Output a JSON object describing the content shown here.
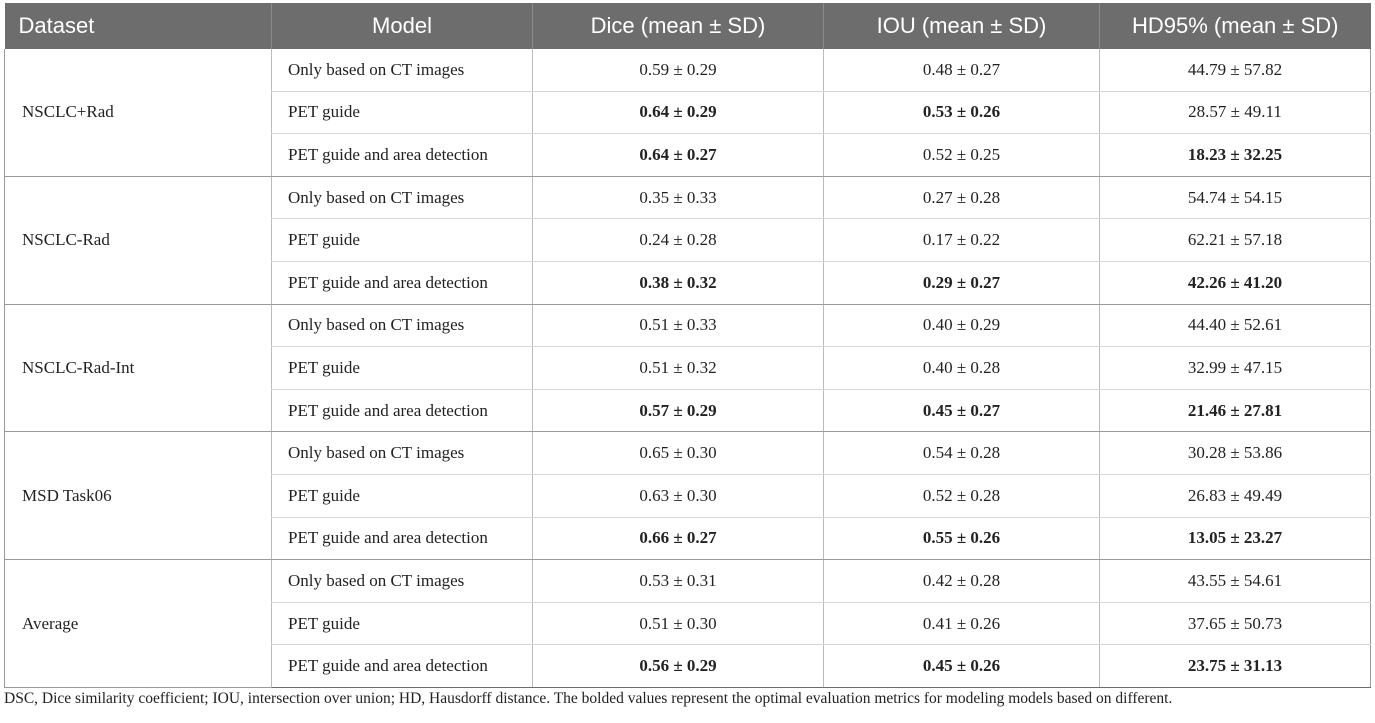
{
  "table": {
    "headers": [
      "Dataset",
      "Model",
      "Dice (mean ± SD)",
      "IOU (mean ± SD)",
      "HD95% (mean ± SD)"
    ],
    "groups": [
      {
        "dataset": "NSCLC+Rad",
        "rows": [
          {
            "model": "Only based on CT images",
            "dice": "0.59 ± 0.29",
            "iou": "0.48 ± 0.27",
            "hd95": "44.79 ± 57.82",
            "bold": []
          },
          {
            "model": "PET guide",
            "dice": "0.64 ± 0.29",
            "iou": "0.53 ± 0.26",
            "hd95": "28.57 ± 49.11",
            "bold": [
              "dice",
              "iou"
            ]
          },
          {
            "model": "PET guide and area detection",
            "dice": "0.64 ± 0.27",
            "iou": "0.52 ± 0.25",
            "hd95": "18.23 ± 32.25",
            "bold": [
              "dice",
              "hd95"
            ]
          }
        ]
      },
      {
        "dataset": "NSCLC-Rad",
        "rows": [
          {
            "model": "Only based on CT images",
            "dice": "0.35 ± 0.33",
            "iou": "0.27 ± 0.28",
            "hd95": "54.74 ± 54.15",
            "bold": []
          },
          {
            "model": "PET guide",
            "dice": "0.24 ± 0.28",
            "iou": "0.17 ± 0.22",
            "hd95": "62.21 ± 57.18",
            "bold": []
          },
          {
            "model": "PET guide and area detection",
            "dice": "0.38 ± 0.32",
            "iou": "0.29 ± 0.27",
            "hd95": "42.26 ± 41.20",
            "bold": [
              "dice",
              "iou",
              "hd95"
            ]
          }
        ]
      },
      {
        "dataset": "NSCLC-Rad-Int",
        "rows": [
          {
            "model": "Only based on CT images",
            "dice": "0.51 ± 0.33",
            "iou": "0.40 ± 0.29",
            "hd95": "44.40 ± 52.61",
            "bold": []
          },
          {
            "model": "PET guide",
            "dice": "0.51 ± 0.32",
            "iou": "0.40 ± 0.28",
            "hd95": "32.99 ± 47.15",
            "bold": []
          },
          {
            "model": "PET guide and area detection",
            "dice": "0.57 ± 0.29",
            "iou": "0.45 ± 0.27",
            "hd95": "21.46 ± 27.81",
            "bold": [
              "dice",
              "iou",
              "hd95"
            ]
          }
        ]
      },
      {
        "dataset": "MSD Task06",
        "rows": [
          {
            "model": "Only based on CT images",
            "dice": "0.65 ± 0.30",
            "iou": "0.54 ± 0.28",
            "hd95": "30.28 ± 53.86",
            "bold": []
          },
          {
            "model": "PET guide",
            "dice": "0.63 ± 0.30",
            "iou": "0.52 ± 0.28",
            "hd95": "26.83 ± 49.49",
            "bold": []
          },
          {
            "model": "PET guide and area detection",
            "dice": "0.66 ± 0.27",
            "iou": "0.55 ± 0.26",
            "hd95": "13.05 ± 23.27",
            "bold": [
              "dice",
              "iou",
              "hd95"
            ]
          }
        ]
      },
      {
        "dataset": "Average",
        "rows": [
          {
            "model": "Only based on CT images",
            "dice": "0.53 ± 0.31",
            "iou": "0.42 ± 0.28",
            "hd95": "43.55 ± 54.61",
            "bold": []
          },
          {
            "model": "PET guide",
            "dice": "0.51 ± 0.30",
            "iou": "0.41 ± 0.26",
            "hd95": "37.65 ± 50.73",
            "bold": []
          },
          {
            "model": "PET guide and area detection",
            "dice": "0.56 ± 0.29",
            "iou": "0.45 ± 0.26",
            "hd95": "23.75 ± 31.13",
            "bold": [
              "dice",
              "iou",
              "hd95"
            ]
          }
        ]
      }
    ]
  },
  "footnote": "DSC, Dice similarity coefficient; IOU, intersection over union; HD, Hausdorff distance. The bolded values represent the optimal evaluation metrics for modeling models based on different."
}
